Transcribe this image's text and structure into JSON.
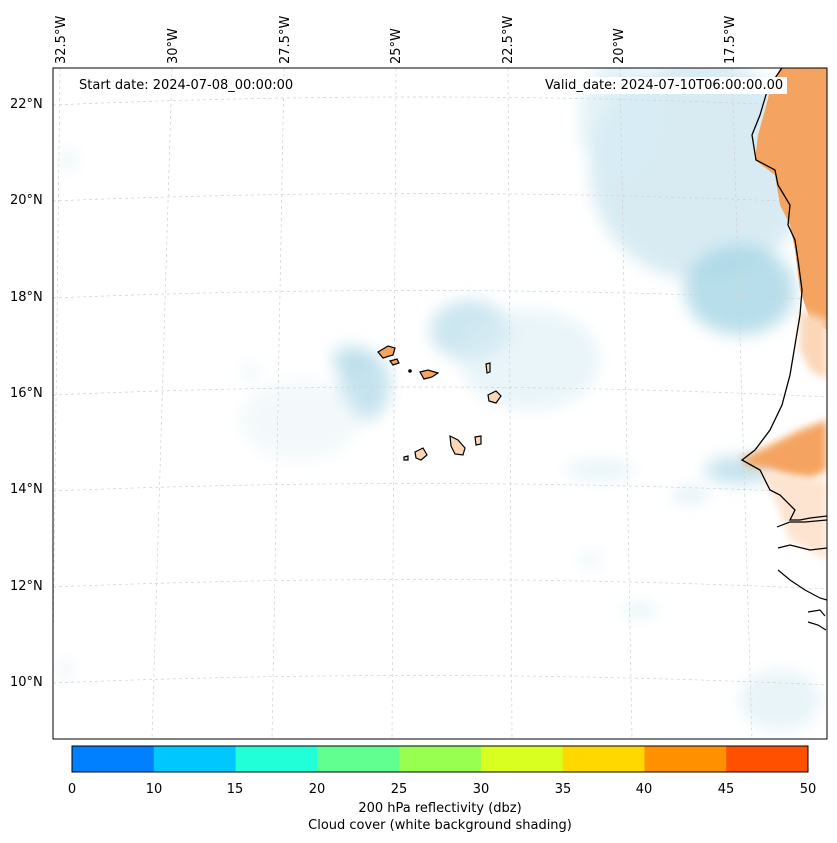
{
  "map": {
    "start_date": "Start date: 2024-07-08_00:00:00",
    "valid_date": "Valid_date: 2024-07-10T06:00:00.00",
    "lon_labels": [
      "32.5°W",
      "30°W",
      "27.5°W",
      "25°W",
      "22.5°W",
      "20°W",
      "17.5°W"
    ],
    "lat_labels": [
      "22°N",
      "20°N",
      "18°N",
      "16°N",
      "14°N",
      "12°N",
      "10°N"
    ],
    "region": "Cape Verde Islands / West African coast"
  },
  "colorbar": {
    "ticks": [
      "0",
      "10",
      "15",
      "20",
      "25",
      "30",
      "35",
      "40",
      "45",
      "50"
    ],
    "colors": [
      "#0080ff",
      "#00c8ff",
      "#20ffd8",
      "#60ff90",
      "#98ff50",
      "#d8ff20",
      "#ffd800",
      "#ff9000",
      "#ff5000"
    ],
    "label": "200 hPa reflectivity (dbz)",
    "sublabel": "Cloud cover (white background shading)"
  }
}
